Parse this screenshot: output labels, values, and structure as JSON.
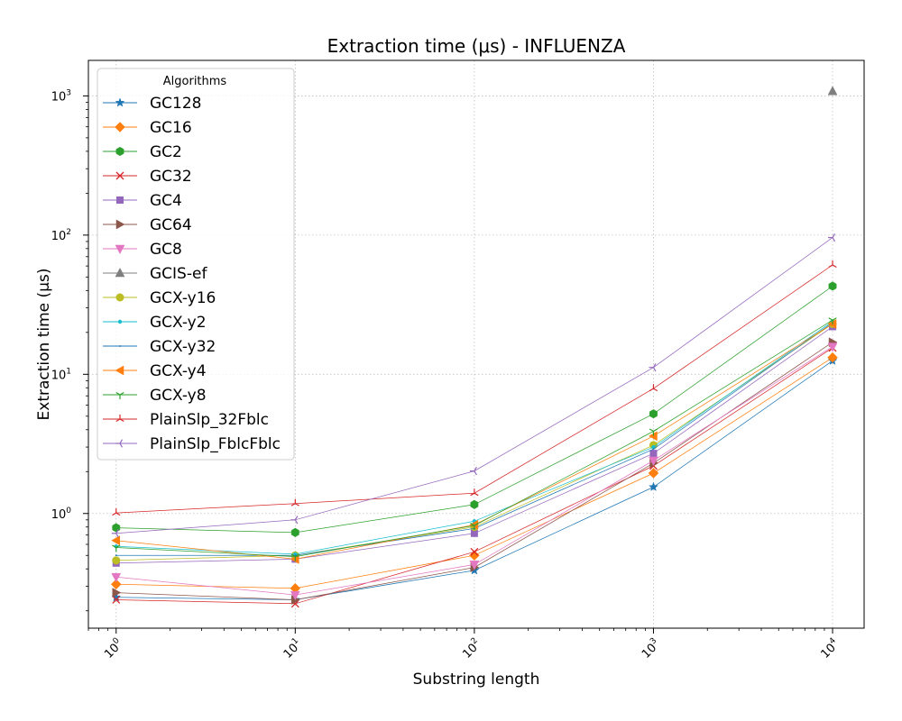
{
  "chart_data": {
    "type": "line",
    "title": "Extraction time (μs) - INFLUENZA",
    "xlabel": "Substring length",
    "ylabel": "Extraction time (μs)",
    "xscale": "log",
    "yscale": "log",
    "xlim": [
      0.7,
      15000
    ],
    "ylim": [
      0.15,
      1800
    ],
    "grid": true,
    "legend_title": "Algorithms",
    "legend_position": "upper-left",
    "x_ticks": [
      {
        "base": "10",
        "exp": "0",
        "value": 1
      },
      {
        "base": "10",
        "exp": "1",
        "value": 10
      },
      {
        "base": "10",
        "exp": "2",
        "value": 100
      },
      {
        "base": "10",
        "exp": "3",
        "value": 1000
      },
      {
        "base": "10",
        "exp": "4",
        "value": 10000
      }
    ],
    "y_ticks": [
      {
        "base": "10",
        "exp": "0",
        "value": 1
      },
      {
        "base": "10",
        "exp": "1",
        "value": 10
      },
      {
        "base": "10",
        "exp": "2",
        "value": 100
      },
      {
        "base": "10",
        "exp": "3",
        "value": 1000
      }
    ],
    "x": [
      1,
      10,
      100,
      1000,
      10000
    ],
    "series": [
      {
        "name": "GC128",
        "color": "#1f77b4",
        "marker": "star",
        "values": [
          0.25,
          0.24,
          0.39,
          1.55,
          12.5
        ]
      },
      {
        "name": "GC16",
        "color": "#ff7f0e",
        "marker": "diamond",
        "values": [
          0.31,
          0.29,
          0.5,
          1.95,
          13.2
        ]
      },
      {
        "name": "GC2",
        "color": "#2ca02c",
        "marker": "hexagon",
        "values": [
          0.79,
          0.73,
          1.16,
          5.2,
          43
        ]
      },
      {
        "name": "GC32",
        "color": "#d62728",
        "marker": "x",
        "values": [
          0.24,
          0.225,
          0.53,
          2.2,
          15.5
        ]
      },
      {
        "name": "GC4",
        "color": "#9467bd",
        "marker": "square",
        "values": [
          0.44,
          0.47,
          0.72,
          2.7,
          22
        ]
      },
      {
        "name": "GC64",
        "color": "#8c564b",
        "marker": "triangle-right",
        "values": [
          0.27,
          0.24,
          0.41,
          2.3,
          17
        ]
      },
      {
        "name": "GC8",
        "color": "#e377c2",
        "marker": "triangle-down",
        "values": [
          0.35,
          0.26,
          0.43,
          2.4,
          15.8
        ]
      },
      {
        "name": "GCIS-ef",
        "color": "#7f7f7f",
        "marker": "triangle-up",
        "values": [
          null,
          null,
          null,
          null,
          1080
        ]
      },
      {
        "name": "GCX-y16",
        "color": "#bcbd22",
        "marker": "circle",
        "values": [
          0.46,
          0.5,
          0.8,
          3.1,
          23
        ]
      },
      {
        "name": "GCX-y2",
        "color": "#17becf",
        "marker": "point",
        "values": [
          0.58,
          0.51,
          0.88,
          3.0,
          24
        ]
      },
      {
        "name": "GCX-y32",
        "color": "#1f77b4",
        "marker": "pixel",
        "values": [
          0.5,
          0.5,
          0.78,
          2.9,
          23.5
        ]
      },
      {
        "name": "GCX-y4",
        "color": "#ff7f0e",
        "marker": "triangle-left",
        "values": [
          0.64,
          0.47,
          0.83,
          3.6,
          23
        ]
      },
      {
        "name": "GCX-y8",
        "color": "#2ca02c",
        "marker": "tri-down",
        "values": [
          0.57,
          0.49,
          0.82,
          3.9,
          24.5
        ]
      },
      {
        "name": "PlainSlp_32Fblc",
        "color": "#d62728",
        "marker": "tri-up",
        "values": [
          1.01,
          1.18,
          1.4,
          7.9,
          61
        ]
      },
      {
        "name": "PlainSlp_FblcFblc",
        "color": "#9467bd",
        "marker": "tri-left",
        "values": [
          0.72,
          0.9,
          2.02,
          11.2,
          96
        ]
      }
    ]
  }
}
